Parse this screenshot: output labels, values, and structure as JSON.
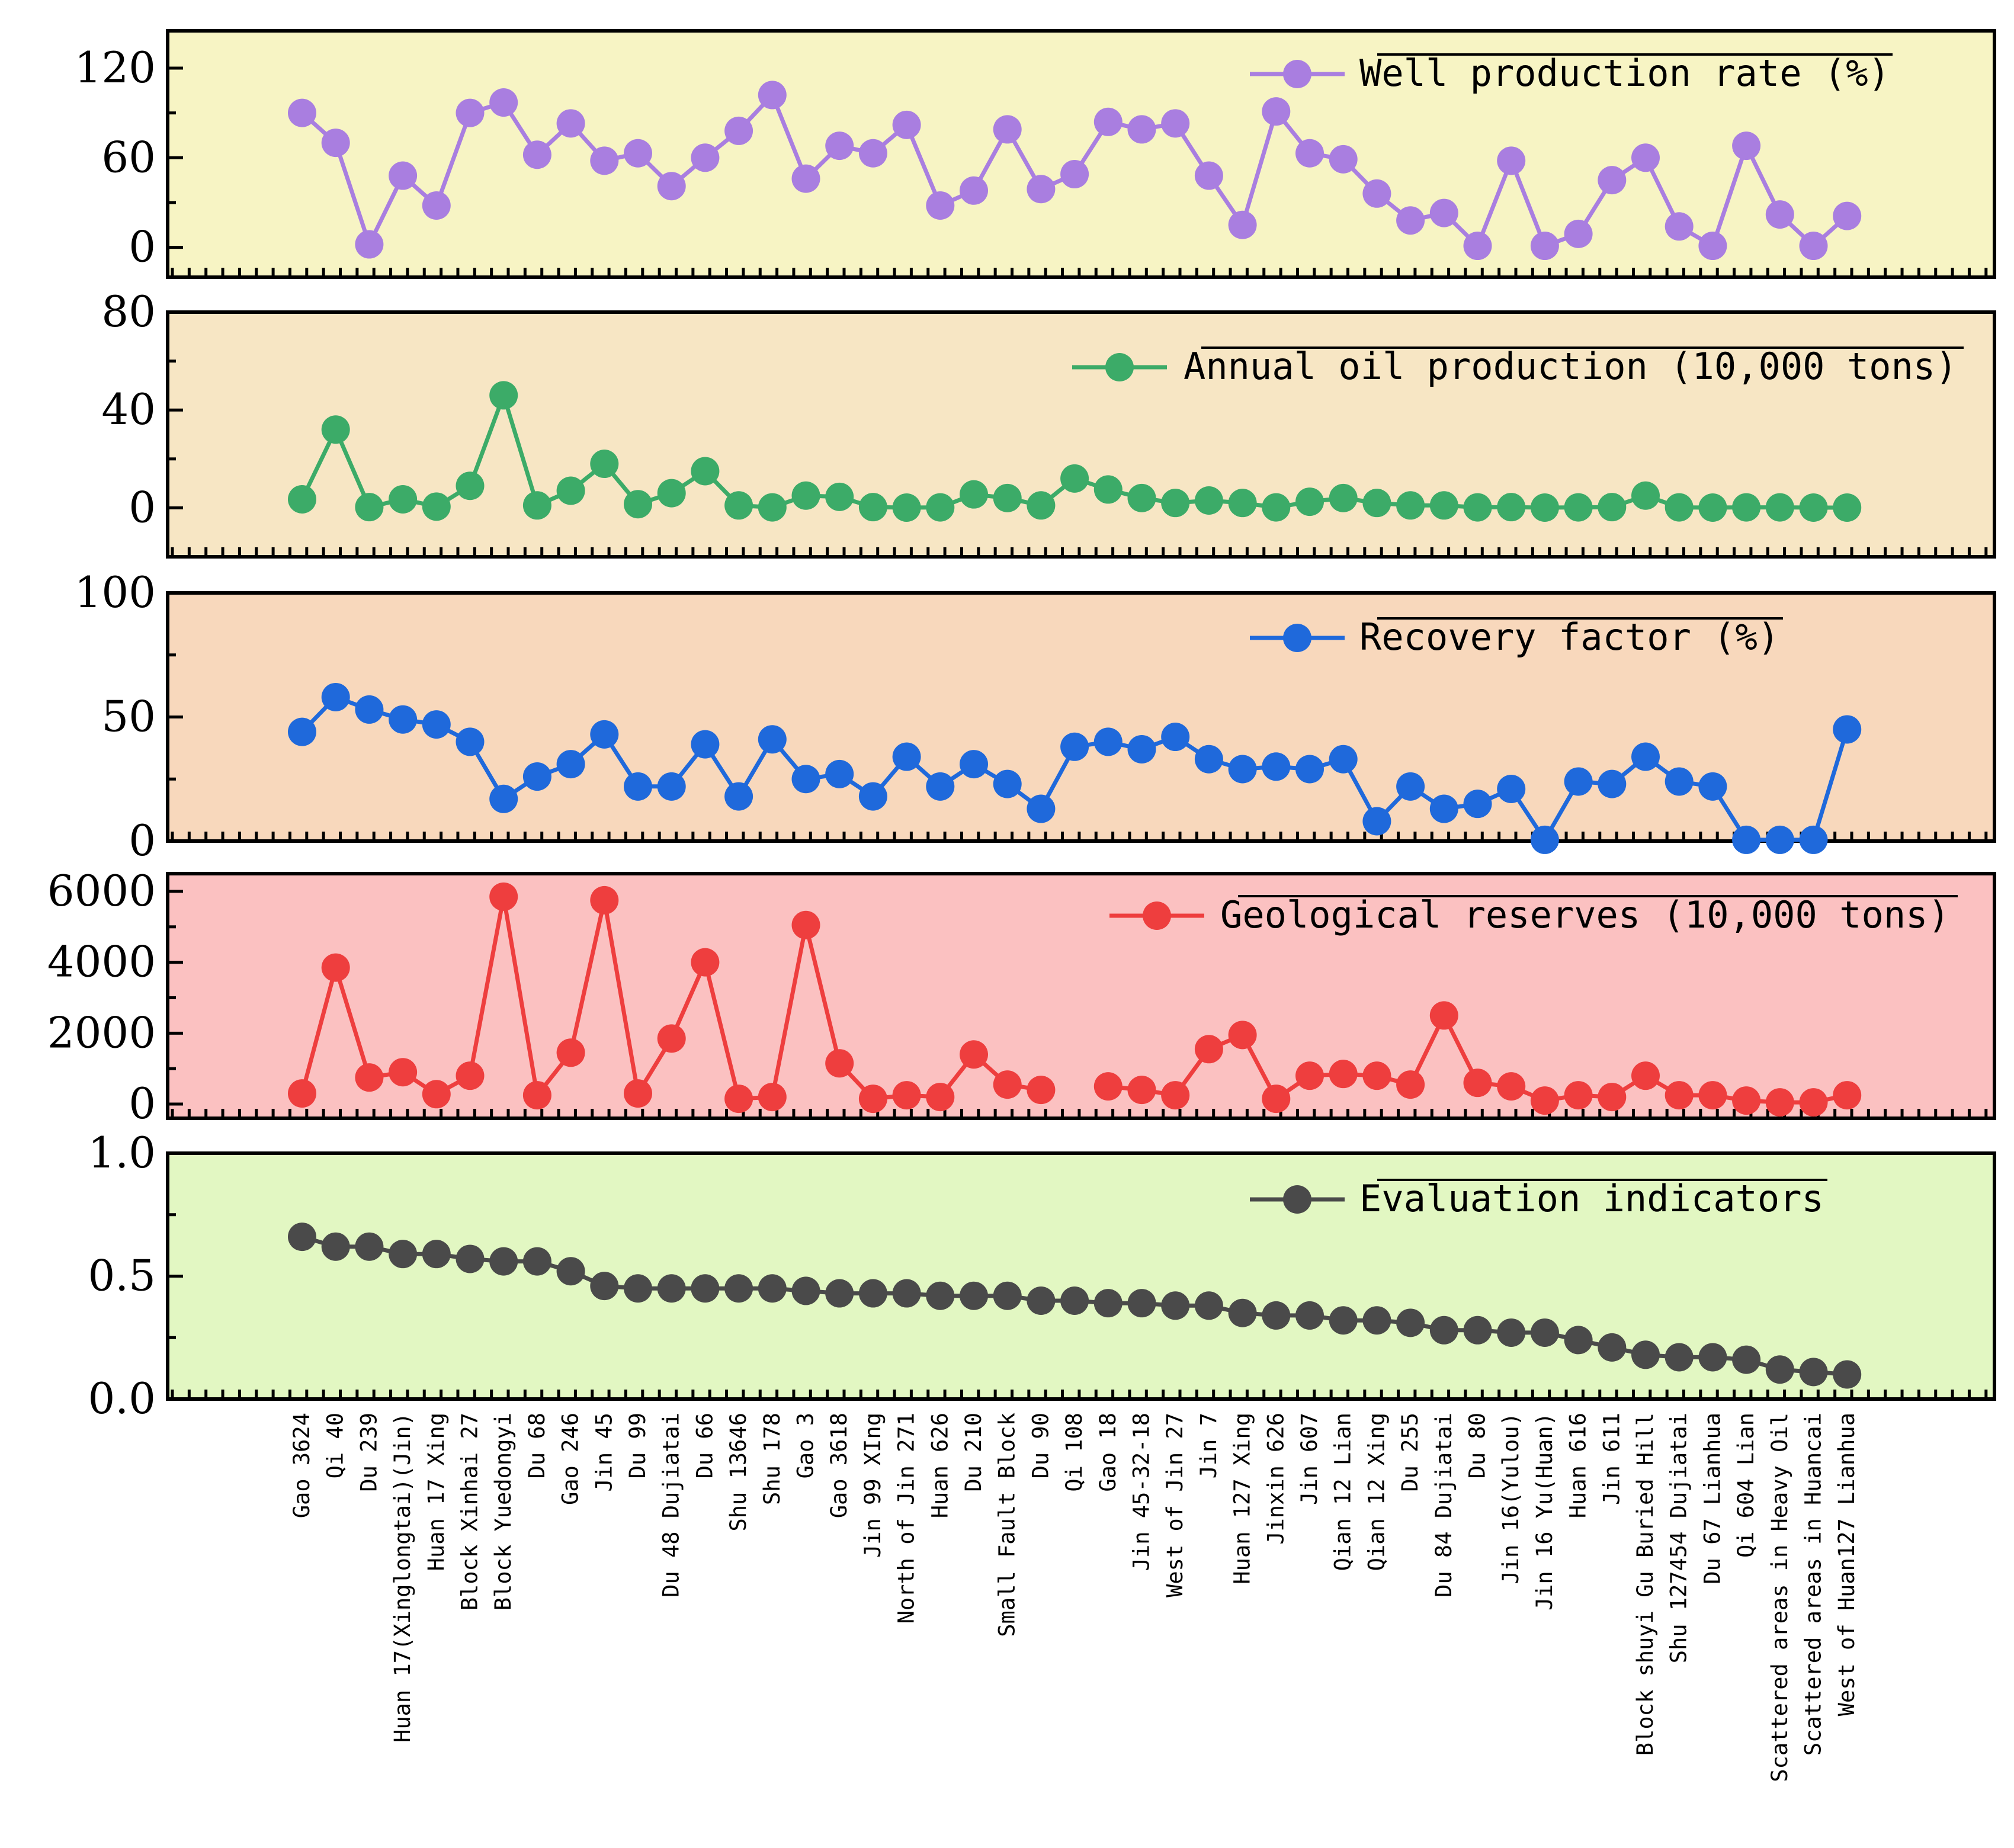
{
  "chart_data": {
    "type": "line",
    "categories": [
      "Gao 3624",
      "Qi 40",
      "Du 239",
      "Huan 17(Xinglongtai)(Jin)",
      "Huan 17 Xing",
      "Block Xinhai 27",
      "Block Yuedongyi",
      "Du 68",
      "Gao 246",
      "Jin 45",
      "Du 99",
      "Du 48 Dujiatai",
      "Du 66",
      "Shu 13646",
      "Shu 178",
      "Gao 3",
      "Gao 3618",
      "Jin 99 XIng",
      "North of Jin 271",
      "Huan 626",
      "Du 210",
      "Small Fault Block",
      "Du 90",
      "Qi 108",
      "Gao 18",
      "Jin 45-32-18",
      "West of Jin 27",
      "Jin 7",
      "Huan 127 Xing",
      "Jinxin 626",
      "Jin 607",
      "Qian 12 Lian",
      "Qian 12 Xing",
      "Du 255",
      "Du 84 Dujiatai",
      "Du 80",
      "Jin 16(Yulou)",
      "Jin 16 Yu(Huan)",
      "Huan 616",
      "Jin 611",
      "Block shuyi Gu Buried Hill",
      "Shu 127454 Dujiatai",
      "Du 67 Lianhua",
      "Qi 604 Lian",
      "Scattered areas in Heavy Oil",
      "Scattered areas in Huancai",
      "West of Huan127 Lianhua"
    ],
    "panels": [
      {
        "name": "Well production rate (%)",
        "color": "#a97ee0",
        "background": "#f7f4c4",
        "ylim": [
          -20,
          145
        ],
        "yticks": [
          0,
          60,
          120
        ],
        "ytick_labels": [
          "0",
          "60",
          "120"
        ],
        "values": [
          90,
          70,
          2,
          48,
          28,
          90,
          97,
          62,
          83,
          58,
          63,
          41,
          60,
          78,
          102,
          46,
          68,
          63,
          82,
          28,
          38,
          79,
          39,
          49,
          84,
          79,
          83,
          48,
          15,
          91,
          63,
          59,
          36,
          18,
          23,
          1,
          58,
          1,
          9,
          45,
          60,
          14,
          1,
          68,
          22,
          1,
          21
        ]
      },
      {
        "name": "Annual oil production (10,000 tons)",
        "color": "#3cab68",
        "background": "#f7e6c4",
        "ylim": [
          -20,
          80
        ],
        "yticks": [
          0,
          40,
          80
        ],
        "ytick_labels": [
          "0",
          "40",
          "80"
        ],
        "values": [
          3.5,
          32,
          0.3,
          3.5,
          0.5,
          9,
          46,
          1,
          7,
          18,
          1.5,
          6,
          15,
          1,
          0.2,
          5,
          4.5,
          0.3,
          0.1,
          0.2,
          5.5,
          4,
          1,
          12,
          7.5,
          4,
          2,
          3,
          2,
          0.2,
          2.5,
          4,
          2,
          1,
          1,
          0.2,
          0.3,
          0.1,
          0.2,
          0.3,
          5,
          0.2,
          0.1,
          0.2,
          0.2,
          0.1,
          0.1
        ]
      },
      {
        "name": "Recovery factor (%)",
        "color": "#1f69db",
        "background": "#f8d8bc",
        "ylim": [
          0,
          100
        ],
        "yticks": [
          0,
          50,
          100
        ],
        "ytick_labels": [
          "0",
          "50",
          "100"
        ],
        "values": [
          44,
          58,
          53,
          49,
          47,
          40,
          17,
          26,
          31,
          43,
          22,
          22,
          39,
          18,
          41,
          25,
          27,
          18,
          34,
          22,
          31,
          23,
          13,
          38,
          40,
          37,
          42,
          33,
          29,
          30,
          29,
          33,
          8,
          22,
          13,
          15,
          21,
          0.5,
          24,
          23,
          34,
          24,
          22,
          0.5,
          0.5,
          0.5,
          45
        ]
      },
      {
        "name": "Geological reserves (10,000 tons)",
        "color": "#ee3e3e",
        "background": "#fbc1c1",
        "ylim": [
          -400,
          6500
        ],
        "yticks": [
          0,
          2000,
          4000,
          6000
        ],
        "ytick_labels": [
          "0",
          "2000",
          "4000",
          "6000"
        ],
        "values": [
          300,
          3850,
          750,
          900,
          280,
          800,
          5850,
          250,
          1450,
          5750,
          300,
          1850,
          4000,
          150,
          200,
          5050,
          1150,
          150,
          250,
          200,
          1400,
          550,
          400,
          null,
          500,
          400,
          250,
          1550,
          1950,
          150,
          800,
          850,
          800,
          550,
          2500,
          600,
          500,
          100,
          250,
          200,
          800,
          250,
          250,
          100,
          50,
          50,
          250
        ]
      },
      {
        "name": "Evaluation indicators",
        "color": "#4a4a4a",
        "background": "#e2f7c2",
        "ylim": [
          0,
          1.0
        ],
        "yticks": [
          0.0,
          0.5,
          1.0
        ],
        "ytick_labels": [
          "0.0",
          "0.5",
          "1.0"
        ],
        "values": [
          0.66,
          0.62,
          0.62,
          0.59,
          0.59,
          0.57,
          0.56,
          0.56,
          0.52,
          0.46,
          0.45,
          0.45,
          0.45,
          0.45,
          0.45,
          0.44,
          0.43,
          0.43,
          0.43,
          0.42,
          0.42,
          0.42,
          0.4,
          0.4,
          0.39,
          0.39,
          0.38,
          0.38,
          0.35,
          0.34,
          0.34,
          0.32,
          0.32,
          0.31,
          0.28,
          0.28,
          0.27,
          0.27,
          0.24,
          0.21,
          0.18,
          0.17,
          0.17,
          0.16,
          0.12,
          0.11,
          0.1
        ]
      }
    ]
  }
}
